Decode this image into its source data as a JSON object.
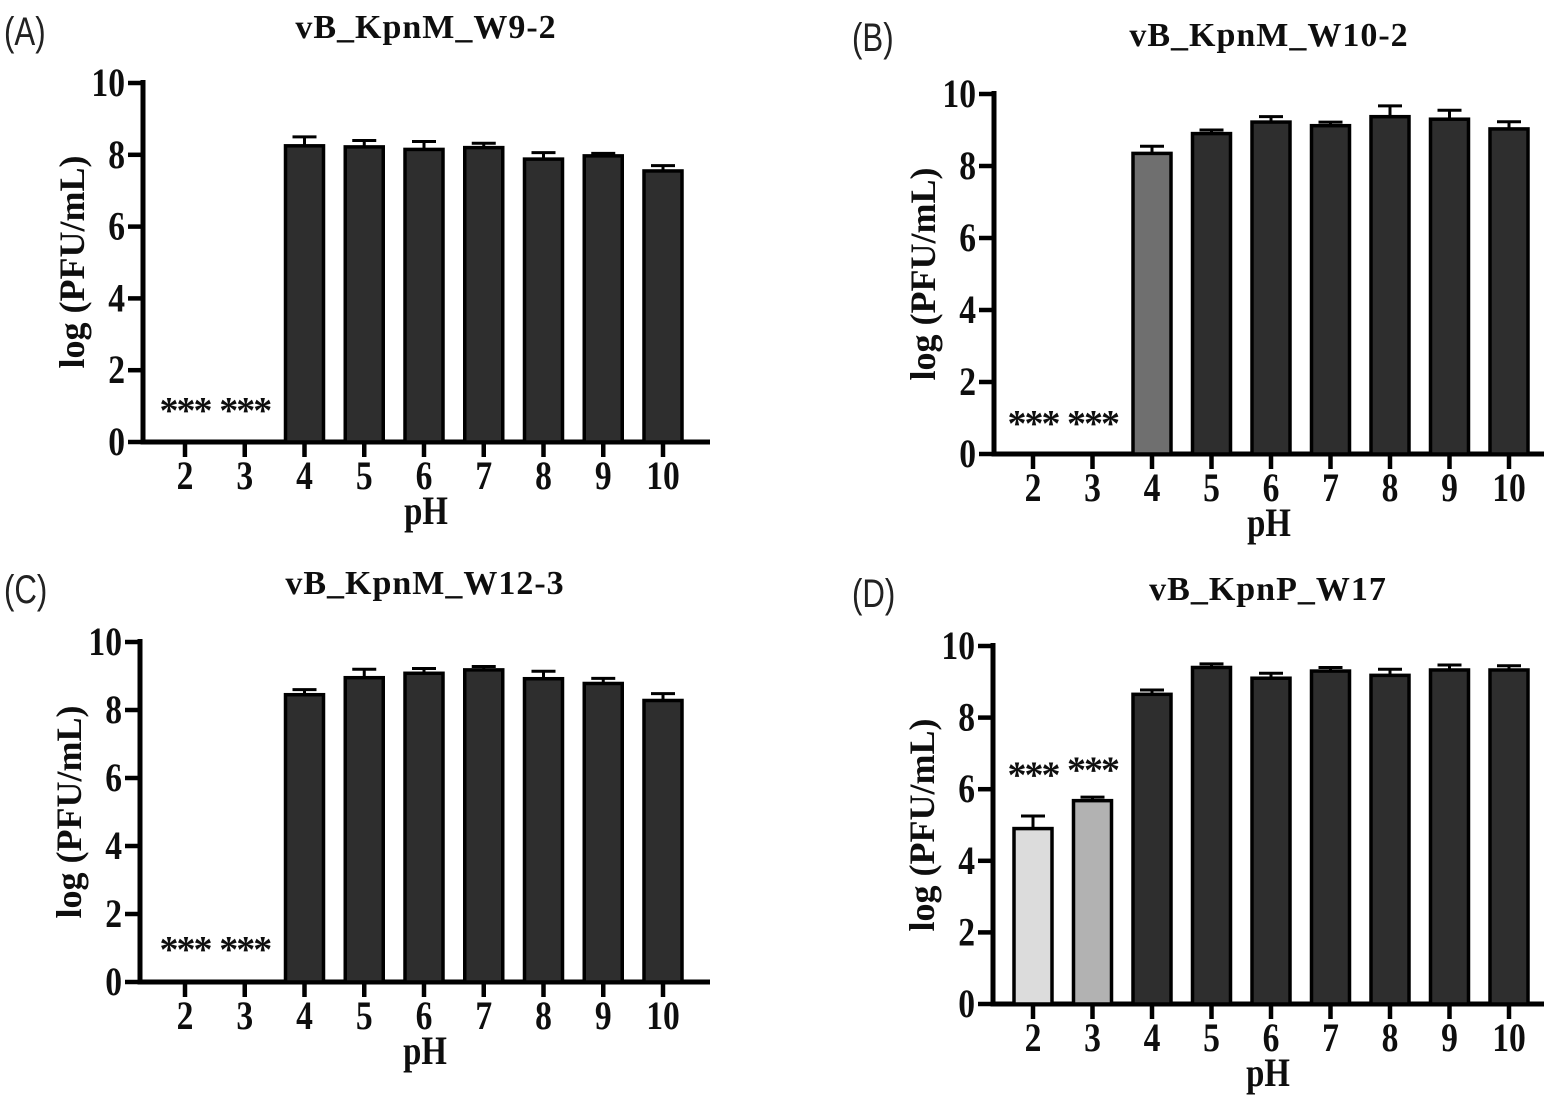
{
  "chart_data": [
    {
      "panel_label": "(A)",
      "title": "vB_KpnM_W9-2",
      "type": "bar",
      "xlabel": "pH",
      "ylabel": "log (PFU/mL)",
      "categories": [
        "2",
        "3",
        "4",
        "5",
        "6",
        "7",
        "8",
        "9",
        "10"
      ],
      "values": [
        0,
        0,
        8.25,
        8.22,
        8.15,
        8.2,
        7.88,
        7.97,
        7.55
      ],
      "errors": [
        0,
        0,
        0.25,
        0.18,
        0.22,
        0.12,
        0.18,
        0.07,
        0.15
      ],
      "bar_colors": [
        "#2e2e2e",
        "#2e2e2e",
        "#2e2e2e",
        "#2e2e2e",
        "#2e2e2e",
        "#2e2e2e",
        "#2e2e2e",
        "#2e2e2e",
        "#2e2e2e"
      ],
      "annotations": [
        {
          "category": "2",
          "text": "***",
          "y": 1.12
        },
        {
          "category": "3",
          "text": "***",
          "y": 1.12
        }
      ],
      "ylim": [
        0,
        10
      ],
      "yticks": [
        0,
        2,
        4,
        6,
        8,
        10
      ],
      "grid": false
    },
    {
      "panel_label": "(B)",
      "title": "vB_KpnM_W10-2",
      "type": "bar",
      "xlabel": "pH",
      "ylabel": "log (PFU/mL)",
      "categories": [
        "2",
        "3",
        "4",
        "5",
        "6",
        "7",
        "8",
        "9",
        "10"
      ],
      "values": [
        0,
        0,
        8.35,
        8.9,
        9.22,
        9.12,
        9.37,
        9.3,
        9.03
      ],
      "errors": [
        0,
        0,
        0.2,
        0.1,
        0.15,
        0.1,
        0.3,
        0.25,
        0.2
      ],
      "bar_colors": [
        "#2e2e2e",
        "#2e2e2e",
        "#6f6f6f",
        "#2e2e2e",
        "#2e2e2e",
        "#2e2e2e",
        "#2e2e2e",
        "#2e2e2e",
        "#2e2e2e"
      ],
      "annotations": [
        {
          "category": "2",
          "text": "***",
          "y": 1.08
        },
        {
          "category": "3",
          "text": "***",
          "y": 1.08
        }
      ],
      "ylim": [
        0,
        10
      ],
      "yticks": [
        0,
        2,
        4,
        6,
        8,
        10
      ],
      "grid": false
    },
    {
      "panel_label": "(C)",
      "title": "vB_KpnM_W12-3",
      "type": "bar",
      "xlabel": "pH",
      "ylabel": "log (PFU/mL)",
      "categories": [
        "2",
        "3",
        "4",
        "5",
        "6",
        "7",
        "8",
        "9",
        "10"
      ],
      "values": [
        0,
        0,
        8.45,
        8.95,
        9.08,
        9.18,
        8.92,
        8.78,
        8.28
      ],
      "errors": [
        0,
        0,
        0.15,
        0.25,
        0.14,
        0.1,
        0.22,
        0.15,
        0.2
      ],
      "bar_colors": [
        "#2e2e2e",
        "#2e2e2e",
        "#2e2e2e",
        "#2e2e2e",
        "#2e2e2e",
        "#2e2e2e",
        "#2e2e2e",
        "#2e2e2e",
        "#2e2e2e"
      ],
      "annotations": [
        {
          "category": "2",
          "text": "***",
          "y": 1.2
        },
        {
          "category": "3",
          "text": "***",
          "y": 1.2
        }
      ],
      "ylim": [
        0,
        10
      ],
      "yticks": [
        0,
        2,
        4,
        6,
        8,
        10
      ],
      "grid": false
    },
    {
      "panel_label": "(D)",
      "title": "vB_KpnP_W17",
      "type": "bar",
      "xlabel": "pH",
      "ylabel": "log (PFU/mL)",
      "categories": [
        "2",
        "3",
        "4",
        "5",
        "6",
        "7",
        "8",
        "9",
        "10"
      ],
      "values": [
        4.9,
        5.68,
        8.65,
        9.4,
        9.1,
        9.3,
        9.18,
        9.33,
        9.33
      ],
      "errors": [
        0.35,
        0.1,
        0.12,
        0.1,
        0.14,
        0.1,
        0.17,
        0.14,
        0.12
      ],
      "bar_colors": [
        "#dcdcdc",
        "#b2b2b2",
        "#2e2e2e",
        "#2e2e2e",
        "#2e2e2e",
        "#2e2e2e",
        "#2e2e2e",
        "#2e2e2e",
        "#2e2e2e"
      ],
      "annotations": [
        {
          "category": "2",
          "text": "***",
          "y": 6.63
        },
        {
          "category": "3",
          "text": "***",
          "y": 6.77
        }
      ],
      "ylim": [
        0,
        10
      ],
      "yticks": [
        0,
        2,
        4,
        6,
        8,
        10
      ],
      "grid": false
    }
  ],
  "colors": {
    "bar_dark": "#2e2e2e",
    "bar_medium_gray": "#6f6f6f",
    "bar_light_gray": "#dcdcdc",
    "bar_mid_light_gray": "#b2b2b2",
    "axis": "#000000",
    "background": "#ffffff"
  }
}
